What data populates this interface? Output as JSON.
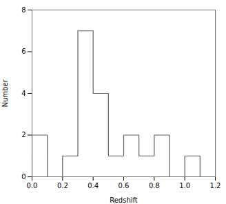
{
  "chart_data": {
    "type": "histogram",
    "bins": [
      0.0,
      0.1,
      0.2,
      0.3,
      0.4,
      0.5,
      0.6,
      0.7,
      0.8,
      0.9,
      1.0,
      1.1,
      1.2
    ],
    "values": [
      2,
      0,
      1,
      7,
      4,
      1,
      2,
      1,
      2,
      0,
      1,
      0
    ],
    "color": "#606060",
    "xlabel": "Redshift",
    "ylabel": "Number",
    "xlim": [
      0.0,
      1.2
    ],
    "ylim": [
      0,
      8
    ],
    "xticks": [
      {
        "value": 0,
        "label": "0.0"
      },
      0.2,
      0.4,
      0.6,
      0.8,
      {
        "value": 1,
        "label": "1.0"
      },
      1.2
    ],
    "yticks": [
      0,
      2,
      4,
      6,
      8
    ],
    "grid": false
  }
}
